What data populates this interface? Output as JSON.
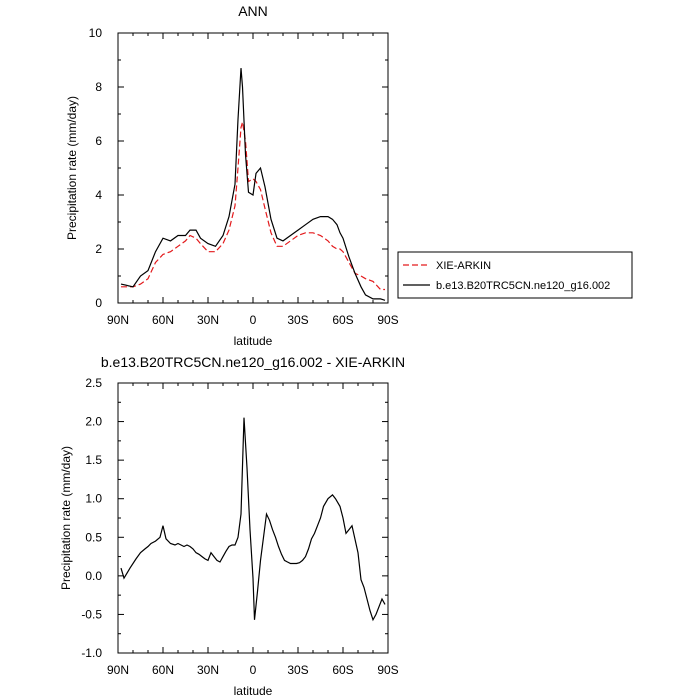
{
  "charts": [
    {
      "type": "line",
      "title": "ANN",
      "xlabel": "latitude",
      "ylabel": "Precipitation rate (mm/day)",
      "x_tick_labels": [
        "90N",
        "60N",
        "30N",
        "0",
        "30S",
        "60S",
        "90S"
      ],
      "x_ticks": [
        90,
        60,
        30,
        0,
        -30,
        -60,
        -90
      ],
      "xlim": [
        90,
        -90
      ],
      "y_ticks": [
        0,
        2,
        4,
        6,
        8,
        10
      ],
      "y_tick_labels": [
        "0",
        "2",
        "4",
        "6",
        "8",
        "10"
      ],
      "ylim": [
        0,
        10
      ],
      "legend": {
        "placement": "right",
        "entries": [
          {
            "label": "XIE-ARKIN",
            "color": "#e31a1c",
            "dash": true
          },
          {
            "label": "b.e13.B20TRC5CN.ne120_g16.002",
            "color": "#000000",
            "dash": false
          }
        ]
      },
      "series": [
        {
          "name": "XIE-ARKIN",
          "color": "#e31a1c",
          "dash": true,
          "x": [
            88,
            80,
            75,
            70,
            65,
            60,
            55,
            50,
            45,
            42,
            38,
            35,
            30,
            25,
            20,
            16,
            12,
            10,
            8,
            7,
            5,
            3,
            0,
            -2,
            -5,
            -8,
            -12,
            -16,
            -20,
            -25,
            -30,
            -35,
            -40,
            -45,
            -50,
            -53,
            -56,
            -58,
            -60,
            -64,
            -68,
            -72,
            -75,
            -80,
            -85,
            -88
          ],
          "y": [
            0.6,
            0.6,
            0.7,
            0.9,
            1.5,
            1.8,
            1.9,
            2.1,
            2.3,
            2.5,
            2.4,
            2.2,
            1.9,
            1.9,
            2.2,
            2.7,
            3.6,
            5.0,
            6.5,
            6.7,
            6.0,
            4.5,
            4.6,
            4.5,
            4.2,
            3.5,
            2.6,
            2.1,
            2.1,
            2.3,
            2.5,
            2.6,
            2.6,
            2.5,
            2.3,
            2.1,
            2.0,
            2.0,
            1.9,
            1.5,
            1.1,
            1.0,
            0.9,
            0.8,
            0.5,
            0.5
          ]
        },
        {
          "name": "b.e13.B20TRC5CN.ne120_g16.002",
          "color": "#000000",
          "dash": false,
          "x": [
            88,
            80,
            75,
            70,
            65,
            60,
            55,
            50,
            45,
            42,
            38,
            35,
            30,
            25,
            20,
            16,
            12,
            10,
            8,
            7,
            5,
            3,
            0,
            -2,
            -5,
            -8,
            -12,
            -16,
            -20,
            -25,
            -30,
            -35,
            -40,
            -45,
            -50,
            -53,
            -56,
            -58,
            -60,
            -64,
            -68,
            -72,
            -75,
            -80,
            -85,
            -88
          ],
          "y": [
            0.7,
            0.6,
            1.0,
            1.2,
            1.9,
            2.4,
            2.3,
            2.5,
            2.5,
            2.7,
            2.7,
            2.4,
            2.2,
            2.1,
            2.5,
            3.2,
            4.4,
            6.8,
            8.7,
            8.0,
            5.5,
            4.1,
            4.0,
            4.8,
            5.0,
            4.3,
            3.1,
            2.4,
            2.3,
            2.5,
            2.7,
            2.9,
            3.1,
            3.2,
            3.2,
            3.1,
            2.9,
            2.6,
            2.4,
            1.7,
            1.1,
            0.6,
            0.3,
            0.15,
            0.15,
            0.1
          ]
        }
      ]
    },
    {
      "type": "line",
      "title": "b.e13.B20TRC5CN.ne120_g16.002 - XIE-ARKIN",
      "xlabel": "latitude",
      "ylabel": "Precipitation rate (mm/day)",
      "x_tick_labels": [
        "90N",
        "60N",
        "30N",
        "0",
        "30S",
        "60S",
        "90S"
      ],
      "x_ticks": [
        90,
        60,
        30,
        0,
        -30,
        -60,
        -90
      ],
      "xlim": [
        90,
        -90
      ],
      "y_ticks": [
        -1.0,
        -0.5,
        0.0,
        0.5,
        1.0,
        1.5,
        2.0,
        2.5
      ],
      "y_tick_labels": [
        "-1.0",
        "-0.5",
        "0.0",
        "0.5",
        "1.0",
        "1.5",
        "2.0",
        "2.5"
      ],
      "ylim": [
        -1.0,
        2.5
      ],
      "series": [
        {
          "color": "#000000",
          "dash": false,
          "x": [
            88,
            86,
            82,
            78,
            75,
            72,
            70,
            68,
            65,
            62,
            60,
            58,
            55,
            52,
            50,
            48,
            46,
            44,
            42,
            40,
            38,
            36,
            34,
            32,
            30,
            28,
            26,
            24,
            22,
            20,
            18,
            16,
            14,
            12,
            10,
            8,
            6,
            4,
            2,
            0,
            -1,
            -3,
            -5,
            -7,
            -9,
            -11,
            -13,
            -15,
            -17,
            -19,
            -21,
            -23,
            -25,
            -27,
            -29,
            -31,
            -33,
            -35,
            -37,
            -39,
            -41,
            -43,
            -45,
            -47,
            -50,
            -53,
            -55,
            -58,
            -60,
            -62,
            -64,
            -66,
            -70,
            -72,
            -74,
            -76,
            -78,
            -80,
            -82,
            -84,
            -86,
            -88
          ],
          "y": [
            0.1,
            -0.03,
            0.1,
            0.22,
            0.3,
            0.35,
            0.38,
            0.42,
            0.45,
            0.5,
            0.65,
            0.48,
            0.42,
            0.4,
            0.42,
            0.4,
            0.38,
            0.4,
            0.38,
            0.35,
            0.3,
            0.28,
            0.25,
            0.22,
            0.2,
            0.3,
            0.25,
            0.2,
            0.18,
            0.25,
            0.32,
            0.38,
            0.4,
            0.4,
            0.5,
            0.8,
            2.05,
            1.4,
            0.6,
            -0.03,
            -0.57,
            -0.2,
            0.2,
            0.5,
            0.8,
            0.72,
            0.6,
            0.5,
            0.38,
            0.28,
            0.2,
            0.18,
            0.16,
            0.16,
            0.16,
            0.17,
            0.2,
            0.25,
            0.35,
            0.48,
            0.55,
            0.65,
            0.75,
            0.9,
            1.0,
            1.05,
            1.0,
            0.9,
            0.75,
            0.55,
            0.6,
            0.65,
            0.3,
            -0.05,
            -0.15,
            -0.3,
            -0.45,
            -0.57,
            -0.5,
            -0.4,
            -0.3,
            -0.37
          ]
        }
      ]
    }
  ]
}
